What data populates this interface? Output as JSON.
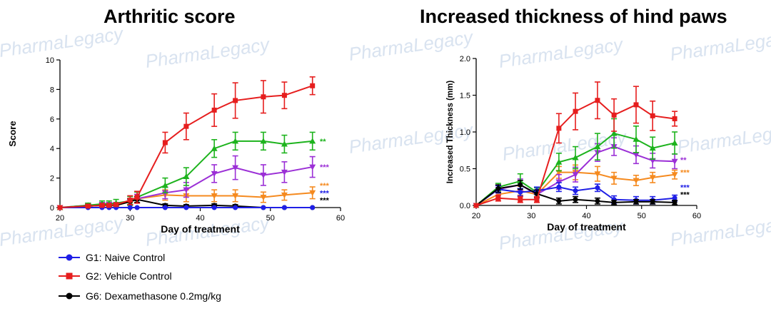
{
  "colors": {
    "G1": "#1f1fe6",
    "G2": "#e61e1e",
    "G3": "#1db31d",
    "G4": "#9b2fd6",
    "G5": "#f58a1f",
    "G6": "#000000"
  },
  "watermark": "PharmaLegacy",
  "legend": [
    {
      "series": "G1",
      "label": "G1: Naive Control",
      "marker": "circle"
    },
    {
      "series": "G2",
      "label": "G2: Vehicle Control",
      "marker": "square"
    },
    {
      "series": "G6",
      "label": "G6: Dexamethasone 0.2mg/kg",
      "marker": "circle"
    }
  ],
  "chart_data": [
    {
      "type": "line",
      "title": "Arthritic score",
      "xlabel": "Day of treatment",
      "ylabel": "Score",
      "xlim": [
        20,
        60
      ],
      "ylim": [
        0,
        10
      ],
      "xticks": [
        20,
        30,
        40,
        50,
        60
      ],
      "yticks": [
        0,
        2,
        4,
        6,
        8,
        10
      ],
      "series": [
        {
          "key": "G5",
          "marker": "triangle-down",
          "x": [
            20,
            24,
            26,
            27,
            28,
            30,
            31,
            35,
            38,
            42,
            45,
            49,
            52,
            56
          ],
          "y": [
            0,
            0.1,
            0.15,
            0.15,
            0.15,
            0.4,
            0.6,
            0.85,
            0.8,
            0.8,
            0.8,
            0.7,
            0.85,
            1.0
          ],
          "err": [
            0,
            0.1,
            0.1,
            0.1,
            0.1,
            0.2,
            0.3,
            0.35,
            0.4,
            0.4,
            0.4,
            0.35,
            0.35,
            0.4
          ]
        },
        {
          "key": "G4",
          "marker": "triangle-down",
          "x": [
            20,
            24,
            26,
            27,
            28,
            30,
            31,
            35,
            38,
            42,
            45,
            49,
            52,
            56
          ],
          "y": [
            0,
            0.15,
            0.2,
            0.2,
            0.2,
            0.4,
            0.6,
            1.0,
            1.2,
            2.3,
            2.7,
            2.2,
            2.4,
            2.75
          ],
          "err": [
            0,
            0.15,
            0.15,
            0.15,
            0.15,
            0.2,
            0.3,
            0.4,
            0.5,
            0.6,
            0.8,
            0.7,
            0.7,
            0.7
          ]
        },
        {
          "key": "G3",
          "marker": "triangle-up",
          "x": [
            20,
            24,
            26,
            27,
            28,
            30,
            31,
            35,
            38,
            42,
            45,
            49,
            52,
            56
          ],
          "y": [
            0,
            0.15,
            0.25,
            0.25,
            0.3,
            0.45,
            0.7,
            1.5,
            2.1,
            4.0,
            4.5,
            4.5,
            4.3,
            4.5
          ],
          "err": [
            0,
            0.15,
            0.2,
            0.2,
            0.25,
            0.3,
            0.35,
            0.5,
            0.6,
            0.6,
            0.6,
            0.6,
            0.6,
            0.6
          ]
        },
        {
          "key": "G6",
          "marker": "circle",
          "x": [
            20,
            24,
            26,
            27,
            28,
            30,
            31,
            35,
            38,
            42,
            45,
            49,
            52,
            56
          ],
          "y": [
            0,
            0.1,
            0.15,
            0.15,
            0.15,
            0.4,
            0.55,
            0.15,
            0.1,
            0.15,
            0.1,
            0,
            0,
            0
          ],
          "err": [
            0,
            0.1,
            0.1,
            0.1,
            0.1,
            0.2,
            0.2,
            0.1,
            0.1,
            0.1,
            0.1,
            0,
            0,
            0
          ]
        },
        {
          "key": "G1",
          "marker": "circle",
          "x": [
            20,
            24,
            26,
            27,
            28,
            30,
            31,
            35,
            38,
            42,
            45,
            49,
            52,
            56
          ],
          "y": [
            0,
            0,
            0,
            0,
            0,
            0,
            0,
            0,
            0,
            0,
            0,
            0,
            0,
            0
          ],
          "err": [
            0,
            0,
            0,
            0,
            0,
            0,
            0,
            0,
            0,
            0,
            0,
            0,
            0,
            0
          ]
        },
        {
          "key": "G2",
          "marker": "square",
          "x": [
            20,
            24,
            26,
            27,
            28,
            30,
            31,
            35,
            38,
            42,
            45,
            49,
            52,
            56
          ],
          "y": [
            0,
            0.1,
            0.15,
            0.15,
            0.2,
            0.5,
            0.7,
            4.4,
            5.5,
            6.6,
            7.25,
            7.5,
            7.6,
            8.25
          ],
          "err": [
            0,
            0.1,
            0.1,
            0.1,
            0.1,
            0.3,
            0.4,
            0.7,
            0.9,
            1.1,
            1.2,
            1.1,
            0.9,
            0.6
          ]
        }
      ],
      "significance": [
        {
          "key": "G3",
          "label": "**",
          "y": 4.5
        },
        {
          "key": "G4",
          "label": "***",
          "y": 2.75
        },
        {
          "key": "G5",
          "label": "***",
          "y": 1.5
        },
        {
          "key": "G1",
          "label": "***",
          "y": 1.0
        },
        {
          "key": "G6",
          "label": "***",
          "y": 0.5
        }
      ]
    },
    {
      "type": "line",
      "title": "Increased thickness of hind paws",
      "xlabel": "Day of treatment",
      "ylabel": "Increased Thickness (mm)",
      "xlim": [
        20,
        60
      ],
      "ylim": [
        0,
        2.0
      ],
      "xticks": [
        20,
        30,
        40,
        50,
        60
      ],
      "yticks": [
        0.0,
        0.5,
        1.0,
        1.5,
        2.0
      ],
      "series": [
        {
          "key": "G5",
          "marker": "triangle-down",
          "x": [
            20,
            24,
            28,
            31,
            35,
            38,
            42,
            45,
            49,
            52,
            56
          ],
          "y": [
            0,
            0.15,
            0.2,
            0.15,
            0.45,
            0.45,
            0.43,
            0.37,
            0.34,
            0.38,
            0.42
          ],
          "err": [
            0,
            0.05,
            0.06,
            0.05,
            0.08,
            0.1,
            0.1,
            0.08,
            0.07,
            0.07,
            0.06
          ]
        },
        {
          "key": "G4",
          "marker": "triangle-down",
          "x": [
            20,
            24,
            28,
            31,
            35,
            38,
            42,
            45,
            49,
            52,
            56
          ],
          "y": [
            0,
            0.22,
            0.28,
            0.15,
            0.32,
            0.42,
            0.72,
            0.8,
            0.69,
            0.61,
            0.6
          ],
          "err": [
            0,
            0.05,
            0.08,
            0.05,
            0.1,
            0.1,
            0.12,
            0.12,
            0.12,
            0.1,
            0.1
          ]
        },
        {
          "key": "G3",
          "marker": "triangle-up",
          "x": [
            20,
            24,
            28,
            31,
            35,
            38,
            42,
            45,
            49,
            52,
            56
          ],
          "y": [
            0,
            0.25,
            0.33,
            0.18,
            0.59,
            0.65,
            0.8,
            0.98,
            0.9,
            0.78,
            0.85
          ],
          "err": [
            0,
            0.05,
            0.1,
            0.06,
            0.12,
            0.15,
            0.18,
            0.2,
            0.18,
            0.15,
            0.15
          ]
        },
        {
          "key": "G1",
          "marker": "circle",
          "x": [
            20,
            24,
            28,
            31,
            35,
            38,
            42,
            45,
            49,
            52,
            56
          ],
          "y": [
            0,
            0.22,
            0.18,
            0.2,
            0.25,
            0.2,
            0.24,
            0.08,
            0.07,
            0.07,
            0.1
          ],
          "err": [
            0,
            0.05,
            0.05,
            0.05,
            0.06,
            0.05,
            0.05,
            0.05,
            0.05,
            0.05,
            0.04
          ]
        },
        {
          "key": "G6",
          "marker": "circle",
          "x": [
            20,
            24,
            28,
            31,
            35,
            38,
            42,
            45,
            49,
            52,
            56
          ],
          "y": [
            0,
            0.23,
            0.28,
            0.16,
            0.06,
            0.08,
            0.06,
            0.04,
            0.05,
            0.05,
            0.04
          ],
          "err": [
            0,
            0.05,
            0.06,
            0.05,
            0.04,
            0.04,
            0.04,
            0.03,
            0.03,
            0.03,
            0.03
          ]
        },
        {
          "key": "G2",
          "marker": "square",
          "x": [
            20,
            24,
            28,
            31,
            35,
            38,
            42,
            45,
            49,
            52,
            56
          ],
          "y": [
            0,
            0.1,
            0.08,
            0.08,
            1.05,
            1.28,
            1.43,
            1.23,
            1.37,
            1.22,
            1.18
          ],
          "err": [
            0,
            0.04,
            0.04,
            0.04,
            0.2,
            0.25,
            0.25,
            0.22,
            0.25,
            0.2,
            0.1
          ]
        }
      ],
      "significance": [
        {
          "key": "G4",
          "label": "**",
          "y": 0.62
        },
        {
          "key": "G5",
          "label": "***",
          "y": 0.45
        },
        {
          "key": "G1",
          "label": "***",
          "y": 0.25
        },
        {
          "key": "G6",
          "label": "***",
          "y": 0.15
        }
      ]
    }
  ]
}
